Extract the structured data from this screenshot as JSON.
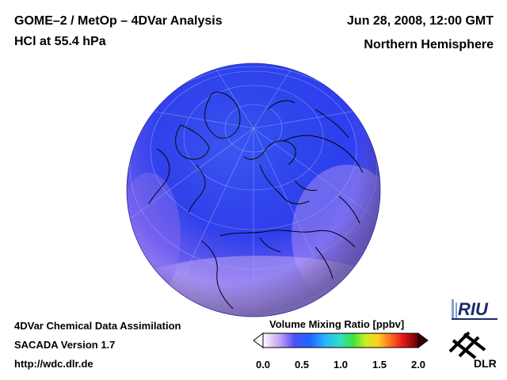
{
  "header": {
    "title": "GOME–2 / MetOp – 4DVar Analysis",
    "species": "HCl at 55.4 hPa",
    "datetime": "Jun 28, 2008, 12:00 GMT",
    "region": "Northern Hemisphere"
  },
  "footer": {
    "line1": "4DVar Chemical Data Assimilation",
    "line2": "SACADA Version 1.7",
    "url": "http://wdc.dlr.de"
  },
  "colorbar": {
    "title": "Volume Mixing Ratio [ppbv]",
    "ticks": [
      "0.0",
      "0.5",
      "1.0",
      "1.5",
      "2.0"
    ],
    "min": 0.0,
    "max": 2.0
  },
  "logos": {
    "riu": "RIU",
    "dlr": "DLR"
  },
  "colors": {
    "field_blue": "#2e44ee",
    "field_purple": "#9a7af0",
    "coastline": "#000000",
    "background": "#ffffff"
  }
}
